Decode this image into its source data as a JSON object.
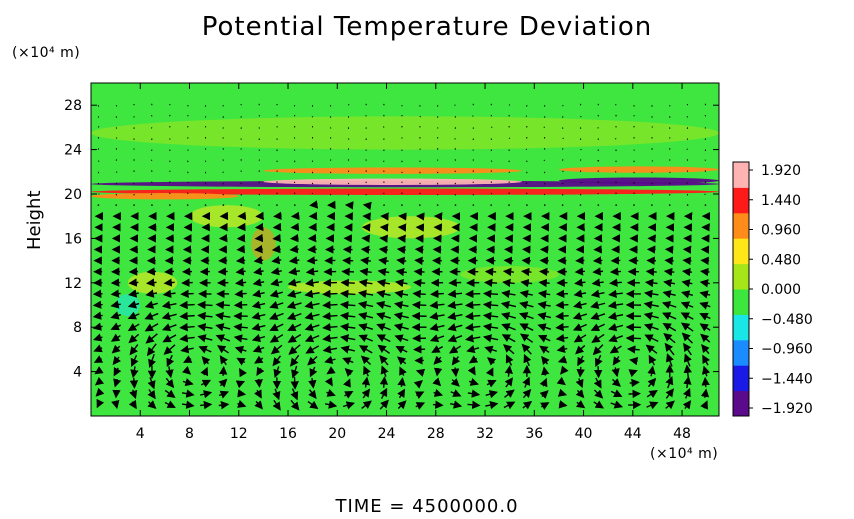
{
  "chart_data": {
    "type": "heatmap",
    "title": "Potential Temperature Deviation",
    "ylabel": "Height",
    "y_unit": "(×10⁴ m)",
    "x_unit": "(×10⁴ m)",
    "footer": "TIME  =  4500000.0",
    "xlim": [
      0,
      51
    ],
    "ylim": [
      0,
      30
    ],
    "xticks": [
      4,
      8,
      12,
      16,
      20,
      24,
      28,
      32,
      36,
      40,
      44,
      48
    ],
    "yticks": [
      4,
      8,
      12,
      16,
      20,
      24,
      28
    ],
    "colorbar": {
      "ticks": [
        1.92,
        1.44,
        0.96,
        0.48,
        0.0,
        -0.48,
        -0.96,
        -1.44,
        -1.92
      ],
      "labels": [
        "1.920",
        "1.440",
        "0.960",
        "0.480",
        "0.000",
        "−0.480",
        "−0.960",
        "−1.440",
        "−1.920"
      ],
      "range": [
        -1.92,
        1.92
      ],
      "colors": [
        "#5a0a8a",
        "#1a1ae6",
        "#1a8cff",
        "#19e6e6",
        "#3ce63c",
        "#a6e619",
        "#ffe619",
        "#ff8c19",
        "#ff1a1a",
        "#ffb3b3"
      ]
    },
    "background_color": "#3fe63f",
    "bands": [
      {
        "x0": 0,
        "x1": 51,
        "y": 20.9,
        "value": -1.6
      },
      {
        "x0": 0,
        "x1": 51,
        "y": 20.2,
        "value": 1.3
      },
      {
        "x0": 14,
        "x1": 35,
        "y": 21.1,
        "value": 1.9
      },
      {
        "x0": 38,
        "x1": 51,
        "y": 21.2,
        "value": -1.9
      },
      {
        "x0": 0,
        "x1": 12,
        "y": 19.8,
        "value": 1.0
      },
      {
        "x0": 14,
        "x1": 35,
        "y": 22.1,
        "value": 0.9
      },
      {
        "x0": 38,
        "x1": 51,
        "y": 22.2,
        "value": 1.1
      }
    ],
    "vortices": [
      {
        "cx": 20,
        "cy": 4,
        "r": 4.5
      },
      {
        "cx": 32,
        "cy": 5,
        "r": 3.5
      },
      {
        "cx": 44,
        "cy": 5,
        "r": 3.5
      },
      {
        "cx": 8,
        "cy": 5,
        "r": 3.0
      }
    ]
  }
}
